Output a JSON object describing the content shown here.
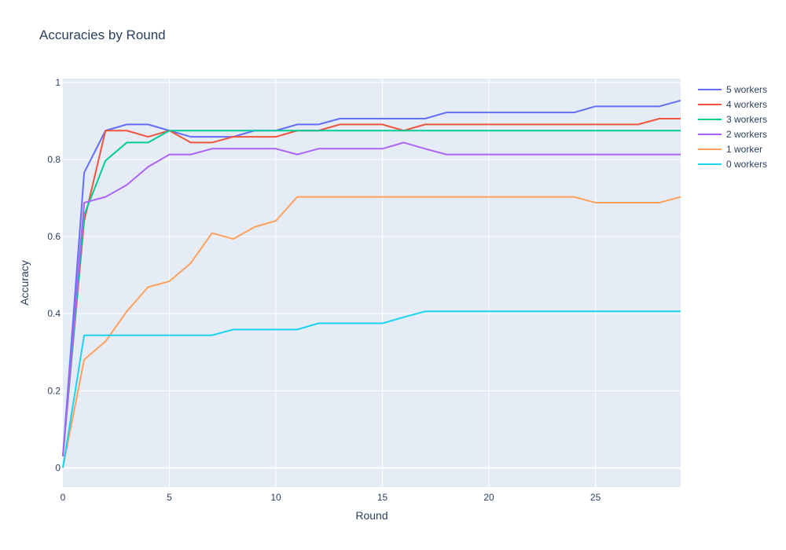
{
  "chart_data": {
    "type": "line",
    "title": "Accuracies by Round",
    "xlabel": "Round",
    "ylabel": "Accuracy",
    "xlim": [
      0,
      29
    ],
    "ylim": [
      -0.05,
      1.01
    ],
    "x_ticks": [
      0,
      5,
      10,
      15,
      20,
      25
    ],
    "y_ticks": [
      0,
      0.2,
      0.4,
      0.6,
      0.8,
      1
    ],
    "y_tick_labels": [
      "0",
      "0.2",
      "0.4",
      "0.6",
      "0.8",
      "1"
    ],
    "grid": true,
    "legend_position": "right",
    "x": [
      0,
      1,
      2,
      3,
      4,
      5,
      6,
      7,
      8,
      9,
      10,
      11,
      12,
      13,
      14,
      15,
      16,
      17,
      18,
      19,
      20,
      21,
      22,
      23,
      24,
      25,
      26,
      27,
      28,
      29
    ],
    "series": [
      {
        "name": "5 workers",
        "color": "#636efa",
        "values": [
          0.03,
          0.766,
          0.875,
          0.891,
          0.891,
          0.875,
          0.859,
          0.859,
          0.859,
          0.875,
          0.875,
          0.891,
          0.891,
          0.906,
          0.906,
          0.906,
          0.906,
          0.906,
          0.922,
          0.922,
          0.922,
          0.922,
          0.922,
          0.922,
          0.922,
          0.938,
          0.938,
          0.938,
          0.938,
          0.953
        ]
      },
      {
        "name": "4 workers",
        "color": "#ef553b",
        "values": [
          0.03,
          0.641,
          0.875,
          0.875,
          0.859,
          0.875,
          0.844,
          0.844,
          0.859,
          0.859,
          0.859,
          0.875,
          0.875,
          0.891,
          0.891,
          0.891,
          0.875,
          0.891,
          0.891,
          0.891,
          0.891,
          0.891,
          0.891,
          0.891,
          0.891,
          0.891,
          0.891,
          0.891,
          0.906,
          0.906
        ]
      },
      {
        "name": "3 workers",
        "color": "#00cc96",
        "values": [
          0.03,
          0.656,
          0.797,
          0.844,
          0.844,
          0.875,
          0.875,
          0.875,
          0.875,
          0.875,
          0.875,
          0.875,
          0.875,
          0.875,
          0.875,
          0.875,
          0.875,
          0.875,
          0.875,
          0.875,
          0.875,
          0.875,
          0.875,
          0.875,
          0.875,
          0.875,
          0.875,
          0.875,
          0.875,
          0.875
        ]
      },
      {
        "name": "2 workers",
        "color": "#ab63fa",
        "values": [
          0.03,
          0.688,
          0.703,
          0.734,
          0.781,
          0.813,
          0.813,
          0.828,
          0.828,
          0.828,
          0.828,
          0.813,
          0.828,
          0.828,
          0.828,
          0.828,
          0.844,
          0.828,
          0.813,
          0.813,
          0.813,
          0.813,
          0.813,
          0.813,
          0.813,
          0.813,
          0.813,
          0.813,
          0.813,
          0.813
        ]
      },
      {
        "name": "1 worker",
        "color": "#ffa15a",
        "values": [
          0.0,
          0.281,
          0.328,
          0.406,
          0.469,
          0.484,
          0.531,
          0.609,
          0.594,
          0.625,
          0.641,
          0.703,
          0.703,
          0.703,
          0.703,
          0.703,
          0.703,
          0.703,
          0.703,
          0.703,
          0.703,
          0.703,
          0.703,
          0.703,
          0.703,
          0.688,
          0.688,
          0.688,
          0.688,
          0.703
        ]
      },
      {
        "name": "0 workers",
        "color": "#19d3f3",
        "values": [
          0.0,
          0.344,
          0.344,
          0.344,
          0.344,
          0.344,
          0.344,
          0.344,
          0.359,
          0.359,
          0.359,
          0.359,
          0.375,
          0.375,
          0.375,
          0.375,
          0.391,
          0.406,
          0.406,
          0.406,
          0.406,
          0.406,
          0.406,
          0.406,
          0.406,
          0.406,
          0.406,
          0.406,
          0.406,
          0.406
        ]
      }
    ]
  },
  "colors": {
    "plot_background": "#e5ecf6",
    "grid": "#ffffff",
    "text": "#2a3f5f"
  }
}
